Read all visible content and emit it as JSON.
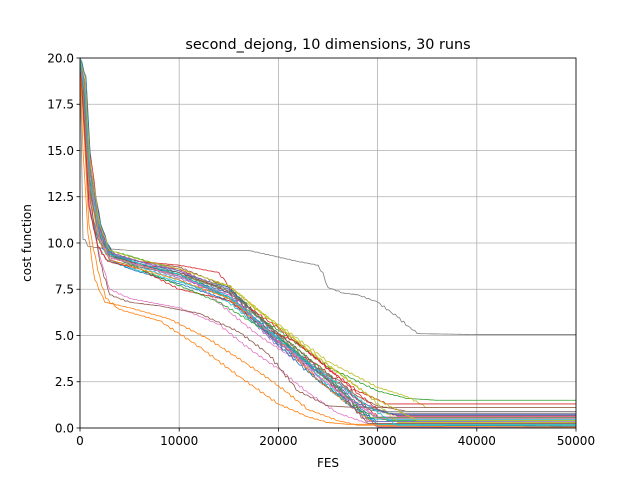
{
  "chart_data": {
    "type": "line",
    "title": "second_dejong, 10 dimensions, 30 runs",
    "xlabel": "FES",
    "ylabel": "cost function",
    "xlim": [
      0,
      50000
    ],
    "ylim": [
      0,
      20
    ],
    "xticks": [
      0,
      10000,
      20000,
      30000,
      40000,
      50000
    ],
    "yticks": [
      0.0,
      2.5,
      5.0,
      7.5,
      10.0,
      12.5,
      15.0,
      17.5,
      20.0
    ],
    "xtick_labels": [
      "0",
      "10000",
      "20000",
      "30000",
      "40000",
      "50000"
    ],
    "ytick_labels": [
      "0.0",
      "2.5",
      "5.0",
      "7.5",
      "10.0",
      "12.5",
      "15.0",
      "17.5",
      "20.0"
    ],
    "grid": true,
    "legend": "none",
    "colors": [
      "#1f77b4",
      "#ff7f0e",
      "#2ca02c",
      "#d62728",
      "#9467bd",
      "#8c564b",
      "#e377c2",
      "#7f7f7f",
      "#bcbd22",
      "#17becf"
    ],
    "series": [
      {
        "color": "#7f7f7f",
        "x": [
          0,
          300,
          1000,
          2500,
          5000,
          10000,
          17000,
          22000,
          24000,
          24500,
          25000,
          26500,
          28000,
          30000,
          32000,
          33500,
          34000,
          40000,
          50000
        ],
        "y": [
          20,
          10.2,
          9.8,
          9.7,
          9.6,
          9.6,
          9.6,
          9.0,
          8.8,
          8.4,
          7.6,
          7.3,
          7.2,
          6.8,
          6.0,
          5.3,
          5.1,
          5.05,
          5.05
        ]
      },
      {
        "color": "#2ca02c",
        "x": [
          0,
          500,
          1000,
          2000,
          3000,
          5000,
          10000,
          15000,
          20000,
          25000,
          30000,
          33000,
          36000,
          50000
        ],
        "y": [
          20,
          19,
          14,
          11,
          9.6,
          9.3,
          8.5,
          7.0,
          5.3,
          3.3,
          2.0,
          1.6,
          1.5,
          1.5
        ]
      },
      {
        "color": "#bcbd22",
        "x": [
          0,
          600,
          1200,
          2200,
          3200,
          5000,
          10000,
          15000,
          20000,
          25000,
          30000,
          33000,
          35000,
          50000
        ],
        "y": [
          20,
          18,
          13,
          10.5,
          9.4,
          9.0,
          8.3,
          7.4,
          5.6,
          3.6,
          2.2,
          1.7,
          1.1,
          1.1
        ]
      },
      {
        "color": "#8c564b",
        "x": [
          0,
          500,
          1100,
          2000,
          3500,
          6000,
          10000,
          15000,
          20000,
          23000,
          26000,
          28000,
          30000,
          33000,
          50000
        ],
        "y": [
          20,
          17,
          12.5,
          10.5,
          9.3,
          9.0,
          8.7,
          7.6,
          5.0,
          3.3,
          2.6,
          1.7,
          1.2,
          0.9,
          0.9
        ]
      },
      {
        "color": "#9467bd",
        "x": [
          0,
          400,
          900,
          1800,
          3000,
          6000,
          10000,
          15000,
          20000,
          25000,
          28000,
          31000,
          50000
        ],
        "y": [
          20,
          17.5,
          13,
          10.8,
          9.2,
          8.8,
          8.2,
          7.0,
          4.4,
          2.7,
          1.5,
          0.75,
          0.75
        ]
      },
      {
        "color": "#d62728",
        "x": [
          0,
          500,
          1000,
          2000,
          3000,
          6000,
          10000,
          14000,
          18000,
          21000,
          24000,
          27000,
          30000,
          50000
        ],
        "y": [
          20,
          19,
          15,
          11,
          9.5,
          9.0,
          8.8,
          8.4,
          5.5,
          4.3,
          3.4,
          2.0,
          0.6,
          0.6
        ]
      },
      {
        "color": "#17becf",
        "x": [
          0,
          500,
          1000,
          2000,
          3500,
          6000,
          10000,
          15000,
          18000,
          21000,
          24000,
          27000,
          29000,
          31000,
          50000
        ],
        "y": [
          20,
          18,
          13.5,
          10.5,
          9.3,
          8.7,
          8.0,
          6.8,
          5.5,
          4.5,
          2.8,
          1.4,
          0.5,
          0.45,
          0.45
        ]
      },
      {
        "color": "#1f77b4",
        "x": [
          0,
          400,
          900,
          1800,
          3000,
          5000,
          10000,
          15000,
          18000,
          21000,
          24000,
          27000,
          30000,
          50000
        ],
        "y": [
          20,
          17,
          12.5,
          10.2,
          9.1,
          8.6,
          7.8,
          6.9,
          5.8,
          4.2,
          2.6,
          1.3,
          0.35,
          0.3
        ]
      },
      {
        "color": "#ff7f0e",
        "x": [
          0,
          400,
          900,
          1800,
          2600,
          4000,
          8000,
          12000,
          16000,
          20000,
          23000,
          25000,
          27000,
          50000
        ],
        "y": [
          20,
          16,
          11,
          8.5,
          7.0,
          6.4,
          5.8,
          4.4,
          2.8,
          1.3,
          0.6,
          0.3,
          0.2,
          0.2
        ]
      },
      {
        "color": "#e377c2",
        "x": [
          0,
          500,
          1000,
          2000,
          3000,
          5000,
          10000,
          14000,
          17000,
          20000,
          23000,
          26000,
          29000,
          50000
        ],
        "y": [
          20,
          17,
          12,
          9.3,
          7.5,
          7.0,
          6.5,
          5.6,
          4.3,
          3.2,
          1.9,
          0.8,
          0.25,
          0.25
        ]
      },
      {
        "color": "#2ca02c",
        "x": [
          0,
          500,
          1000,
          2000,
          3000,
          6000,
          10000,
          15000,
          20000,
          25000,
          28000,
          31000,
          50000
        ],
        "y": [
          20,
          18,
          14,
          10.6,
          9.3,
          8.9,
          8.3,
          7.5,
          5.1,
          2.9,
          1.0,
          0.4,
          0.4
        ]
      },
      {
        "color": "#d62728",
        "x": [
          0,
          500,
          1000,
          2000,
          3000,
          6000,
          10000,
          15000,
          20000,
          24000,
          27000,
          30000,
          32000,
          50000
        ],
        "y": [
          20,
          18.5,
          14.5,
          10.8,
          9.4,
          8.8,
          8.6,
          7.3,
          5.4,
          3.7,
          2.3,
          1.0,
          0.65,
          0.65
        ]
      },
      {
        "color": "#1f77b4",
        "x": [
          0,
          600,
          1100,
          2100,
          3200,
          6000,
          10000,
          15000,
          20000,
          24000,
          27000,
          30000,
          50000
        ],
        "y": [
          20,
          19,
          14,
          11,
          9.4,
          9.0,
          8.4,
          7.6,
          4.9,
          3.0,
          1.8,
          0.15,
          0.1
        ]
      },
      {
        "color": "#ff7f0e",
        "x": [
          0,
          300,
          800,
          1500,
          2500,
          5000,
          9000,
          13000,
          17000,
          20000,
          23000,
          26000,
          28000,
          50000
        ],
        "y": [
          20,
          15,
          10.5,
          8.0,
          6.8,
          6.5,
          5.9,
          4.8,
          3.4,
          2.3,
          1.0,
          0.4,
          0.15,
          0.15
        ]
      },
      {
        "color": "#8c564b",
        "x": [
          0,
          500,
          1000,
          2000,
          3000,
          5000,
          8000,
          12000,
          16000,
          19000,
          22000,
          25000,
          28000,
          50000
        ],
        "y": [
          20,
          17,
          12.5,
          9.0,
          7.2,
          6.8,
          6.6,
          6.2,
          5.2,
          4.0,
          2.0,
          1.2,
          1.1,
          1.1
        ]
      },
      {
        "color": "#9467bd",
        "x": [
          0,
          500,
          1000,
          2000,
          3000,
          6000,
          10000,
          15000,
          20000,
          24000,
          27000,
          30000,
          50000
        ],
        "y": [
          20,
          18,
          14,
          10.7,
          9.5,
          8.8,
          8.1,
          7.2,
          4.7,
          3.2,
          1.6,
          0.05,
          0.05
        ]
      },
      {
        "color": "#7f7f7f",
        "x": [
          0,
          400,
          900,
          1700,
          2600,
          6000,
          10000,
          15000,
          20000,
          23000,
          26000,
          29000,
          31000,
          50000
        ],
        "y": [
          20,
          17,
          12,
          10.0,
          9.1,
          8.7,
          8.3,
          7.0,
          4.6,
          3.5,
          2.6,
          1.0,
          0.8,
          0.8
        ]
      },
      {
        "color": "#e377c2",
        "x": [
          0,
          500,
          1000,
          2000,
          3000,
          6000,
          10000,
          15000,
          18000,
          22000,
          25000,
          28000,
          30000,
          50000
        ],
        "y": [
          20,
          18,
          13.5,
          10.3,
          9.2,
          8.9,
          8.6,
          6.3,
          5.0,
          3.6,
          2.4,
          1.3,
          0.5,
          0.5
        ]
      },
      {
        "color": "#bcbd22",
        "x": [
          0,
          500,
          1000,
          2000,
          3000,
          6000,
          10000,
          15000,
          20000,
          25000,
          29000,
          32000,
          50000
        ],
        "y": [
          20,
          18.5,
          14,
          10.5,
          9.3,
          8.8,
          8.2,
          7.7,
          5.5,
          3.4,
          1.8,
          0.3,
          0.3
        ]
      },
      {
        "color": "#17becf",
        "x": [
          0,
          500,
          1000,
          2000,
          3000,
          6000,
          10000,
          15000,
          19000,
          22000,
          25000,
          28000,
          30000,
          50000
        ],
        "y": [
          20,
          17.5,
          13,
          10.1,
          9.0,
          8.5,
          7.9,
          7.1,
          5.3,
          4.1,
          2.2,
          0.9,
          0.2,
          0.2
        ]
      },
      {
        "color": "#d62728",
        "x": [
          0,
          400,
          900,
          1800,
          2800,
          6000,
          10000,
          15000,
          19000,
          22000,
          25000,
          28000,
          31000,
          50000
        ],
        "y": [
          20,
          16.5,
          12,
          9.8,
          9.0,
          8.6,
          7.5,
          6.9,
          5.3,
          4.6,
          3.2,
          2.0,
          1.3,
          1.3
        ]
      },
      {
        "color": "#2ca02c",
        "x": [
          0,
          500,
          1000,
          2000,
          3500,
          6000,
          10000,
          14000,
          18000,
          21000,
          24000,
          27000,
          29000,
          50000
        ],
        "y": [
          20,
          18,
          13,
          10.0,
          9.2,
          8.6,
          7.7,
          6.8,
          5.5,
          4.5,
          3.0,
          1.7,
          0.55,
          0.55
        ]
      },
      {
        "color": "#1f77b4",
        "x": [
          0,
          500,
          1000,
          2000,
          3000,
          6000,
          10000,
          15000,
          20000,
          23000,
          26000,
          29000,
          32000,
          50000
        ],
        "y": [
          20,
          18,
          13.5,
          10.4,
          9.3,
          8.9,
          8.2,
          7.3,
          4.5,
          3.0,
          1.8,
          1.1,
          0.7,
          0.7
        ]
      },
      {
        "color": "#ff7f0e",
        "x": [
          0,
          500,
          1000,
          2000,
          3000,
          6000,
          10000,
          15000,
          20000,
          24000,
          27000,
          30000,
          50000
        ],
        "y": [
          20,
          17,
          12.5,
          10.1,
          9.1,
          8.6,
          8.0,
          7.0,
          4.8,
          2.6,
          1.3,
          0.1,
          0.05
        ]
      },
      {
        "color": "#9467bd",
        "x": [
          0,
          500,
          1000,
          2000,
          3000,
          6000,
          10000,
          15000,
          19000,
          22000,
          25000,
          27000,
          29000,
          50000
        ],
        "y": [
          20,
          18.5,
          14,
          10.9,
          9.5,
          9.0,
          8.5,
          7.5,
          5.0,
          3.8,
          2.6,
          1.4,
          0.35,
          0.35
        ]
      },
      {
        "color": "#8c564b",
        "x": [
          0,
          500,
          1000,
          2000,
          3000,
          6000,
          10000,
          15000,
          20000,
          23000,
          26000,
          29000,
          50000
        ],
        "y": [
          20,
          17.5,
          13.5,
          10.5,
          9.4,
          8.8,
          8.4,
          7.4,
          5.1,
          3.8,
          2.0,
          0.25,
          0.25
        ]
      },
      {
        "color": "#7f7f7f",
        "x": [
          0,
          500,
          1000,
          2000,
          3000,
          6000,
          10000,
          15000,
          20000,
          24000,
          28000,
          31000,
          50000
        ],
        "y": [
          20,
          17,
          13,
          10.3,
          9.3,
          8.7,
          8.3,
          7.4,
          5.0,
          3.1,
          1.2,
          0.9,
          0.9
        ]
      },
      {
        "color": "#e377c2",
        "x": [
          0,
          500,
          1000,
          2000,
          3000,
          6000,
          10000,
          15000,
          18000,
          21000,
          24000,
          27000,
          30000,
          50000
        ],
        "y": [
          20,
          18,
          13.5,
          10.2,
          9.2,
          8.8,
          8.2,
          7.2,
          5.7,
          4.3,
          2.8,
          1.6,
          0.6,
          0.6
        ]
      },
      {
        "color": "#bcbd22",
        "x": [
          0,
          500,
          1000,
          2000,
          3000,
          6000,
          10000,
          15000,
          19000,
          23000,
          26000,
          29000,
          34000,
          50000
        ],
        "y": [
          20,
          19,
          14.5,
          11,
          9.6,
          9.1,
          8.6,
          7.7,
          5.9,
          4.2,
          3.0,
          1.8,
          0.4,
          0.4
        ]
      },
      {
        "color": "#17becf",
        "x": [
          0,
          500,
          1000,
          2000,
          3000,
          6000,
          10000,
          15000,
          20000,
          23000,
          26000,
          29000,
          32000,
          50000
        ],
        "y": [
          20,
          18,
          13.5,
          10.6,
          9.4,
          8.9,
          8.3,
          7.1,
          4.8,
          3.5,
          2.4,
          1.2,
          0.15,
          0.15
        ]
      }
    ]
  }
}
